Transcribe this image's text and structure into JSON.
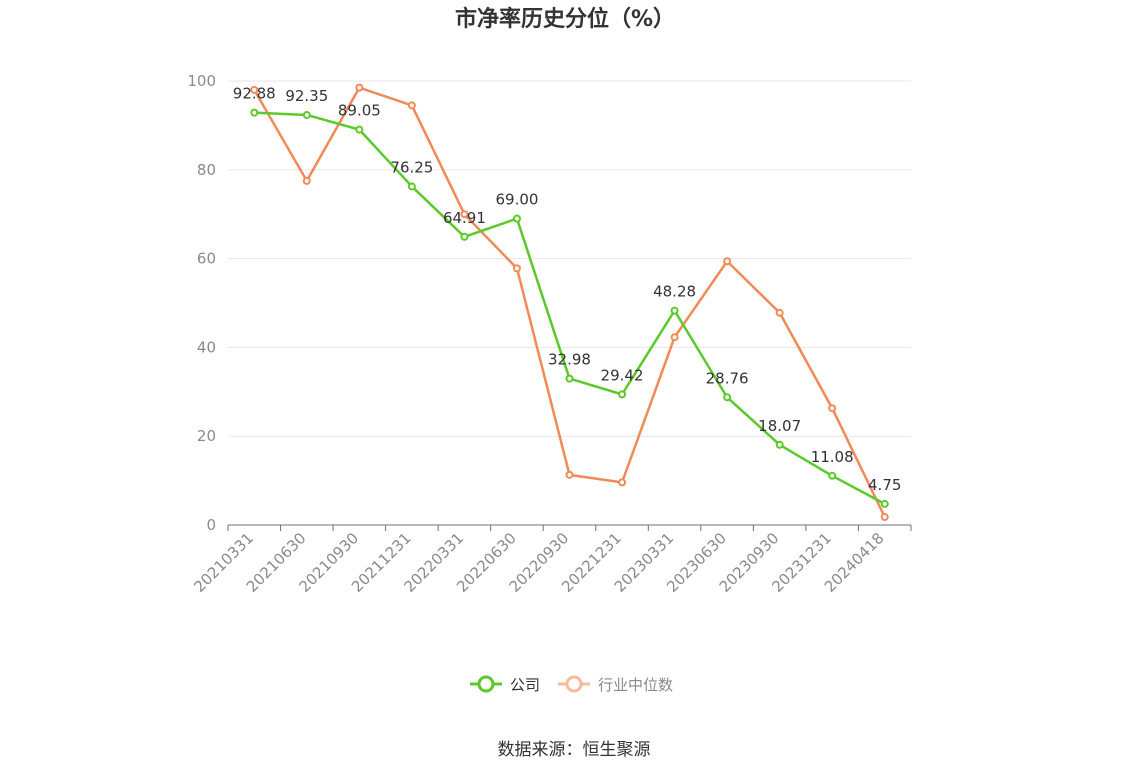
{
  "chart_data": {
    "type": "line",
    "title": "市净率历史分位（%）",
    "categories": [
      "20210331",
      "20210630",
      "20210930",
      "20211231",
      "20220331",
      "20220630",
      "20220930",
      "20221231",
      "20230331",
      "20230630",
      "20230930",
      "20231231",
      "20240418"
    ],
    "ylim": [
      0,
      100
    ],
    "yticks": [
      0,
      20,
      40,
      60,
      80,
      100
    ],
    "grid": true,
    "legend_position": "bottom",
    "series": [
      {
        "name": "公司",
        "color": "#5cc92a",
        "show_labels": true,
        "values": [
          92.88,
          92.35,
          89.05,
          76.25,
          64.91,
          69.0,
          32.98,
          29.42,
          48.28,
          28.76,
          18.07,
          11.08,
          4.75
        ]
      },
      {
        "name": "行业中位数",
        "color": "#f28a58",
        "show_labels": false,
        "values": [
          98.0,
          77.5,
          98.5,
          94.5,
          70.0,
          57.8,
          11.3,
          9.6,
          42.3,
          59.4,
          47.8,
          26.3,
          1.8
        ]
      }
    ],
    "value_labels": [
      "92.88",
      "92.35",
      "89.05",
      "76.25",
      "64.91",
      "69.00",
      "32.98",
      "29.42",
      "48.28",
      "28.76",
      "18.07",
      "11.08",
      "4.75"
    ]
  },
  "legend": {
    "company_label": "公司",
    "industry_label": "行业中位数",
    "company_color": "#5cc92a",
    "industry_color": "#f9b99c"
  },
  "source": "数据来源：恒生聚源"
}
